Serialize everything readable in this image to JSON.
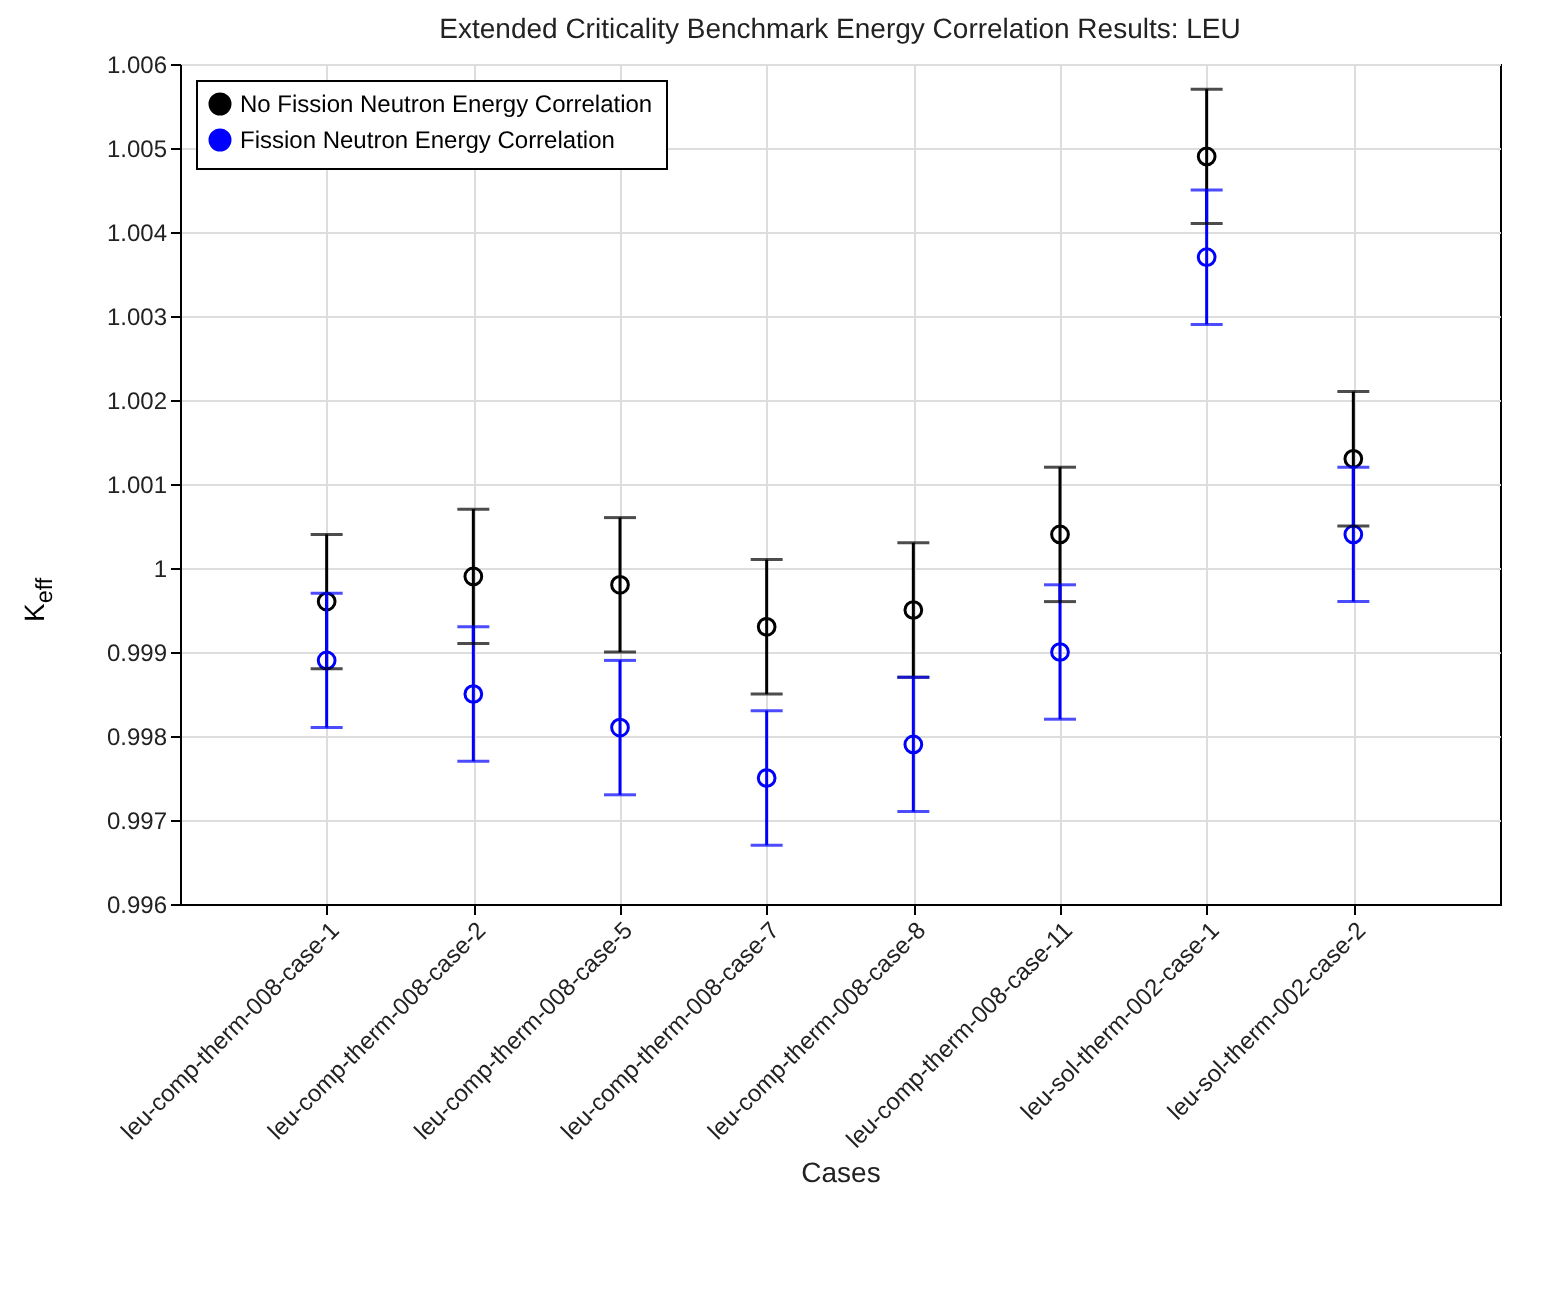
{
  "chart_data": {
    "type": "scatter",
    "title": "Extended Criticality Benchmark Energy Correlation Results: LEU",
    "xlabel": "Cases",
    "ylabel": "K$_{eff}$",
    "categories": [
      "leu-comp-therm-008-case-1",
      "leu-comp-therm-008-case-2",
      "leu-comp-therm-008-case-5",
      "leu-comp-therm-008-case-7",
      "leu-comp-therm-008-case-8",
      "leu-comp-therm-008-case-11",
      "leu-sol-therm-002-case-1",
      "leu-sol-therm-002-case-2"
    ],
    "series": [
      {
        "name": "No Fission Neutron Energy Correlation",
        "color": "#000000",
        "values": [
          0.9996,
          0.9999,
          0.9998,
          0.9993,
          0.9995,
          1.0004,
          1.0049,
          1.0013
        ],
        "errors": [
          0.0008,
          0.0008,
          0.0008,
          0.0008,
          0.0008,
          0.0008,
          0.0008,
          0.0008
        ]
      },
      {
        "name": "Fission Neutron Energy Correlation",
        "color": "#0000ff",
        "values": [
          0.9989,
          0.9985,
          0.9981,
          0.9975,
          0.9979,
          0.999,
          1.0037,
          1.0004
        ],
        "errors": [
          0.0008,
          0.0008,
          0.0008,
          0.0008,
          0.0008,
          0.0008,
          0.0008,
          0.0008
        ]
      }
    ],
    "ylim": [
      0.996,
      1.006
    ],
    "yticks": [
      0.996,
      0.997,
      0.998,
      0.999,
      1,
      1.001,
      1.002,
      1.003,
      1.004,
      1.005,
      1.006
    ],
    "grid": true,
    "legend": "top left",
    "marker": "circle"
  }
}
